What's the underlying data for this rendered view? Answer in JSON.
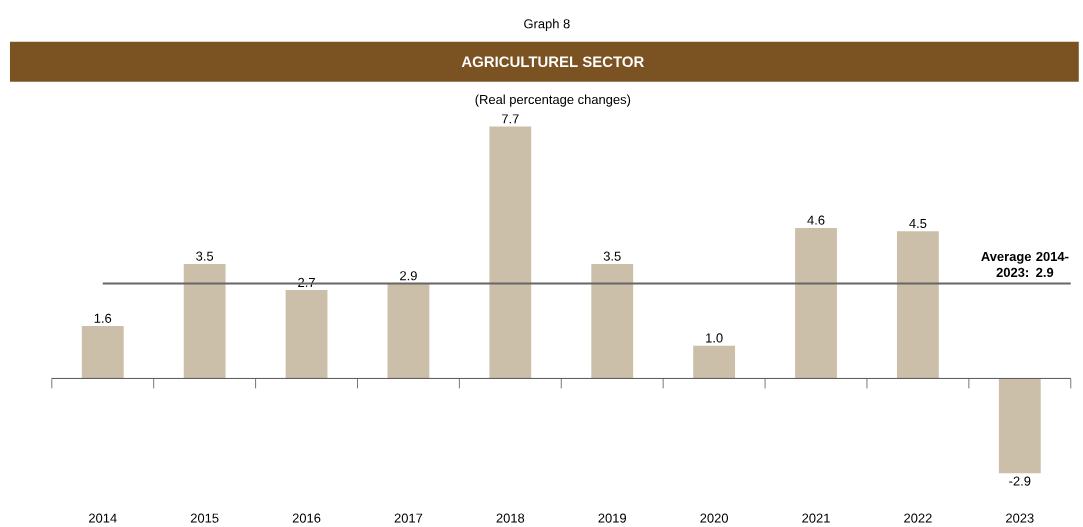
{
  "chart_data": {
    "type": "bar",
    "title": "AGRICULTUREL SECTOR",
    "subtitle": "(Real percentage changes)",
    "annotations": [
      "Graph 8"
    ],
    "categories": [
      "2014",
      "2015",
      "2016",
      "2017",
      "2018",
      "2019",
      "2020",
      "2021",
      "2022",
      "2023"
    ],
    "values": [
      1.6,
      3.5,
      2.7,
      2.9,
      7.7,
      3.5,
      1.0,
      4.6,
      4.5,
      -2.9
    ],
    "color": "#ccbfaa",
    "value_labels": [
      "1.6",
      "3.5",
      "2.7",
      "2.9",
      "7.7",
      "3.5",
      "1.0",
      "4.6",
      "4.5",
      "-2.9"
    ],
    "ref_lines": [
      {
        "axis": "y",
        "value": 2.9,
        "label": "Average 2014-2023: 2.9",
        "color": "#666666"
      }
    ]
  }
}
